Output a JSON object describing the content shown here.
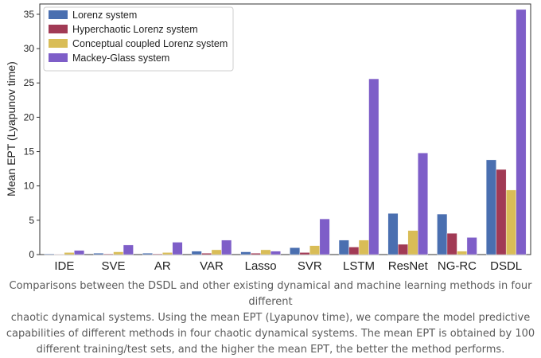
{
  "chart_data": {
    "type": "bar",
    "title": "",
    "xlabel": "",
    "ylabel": "Mean EPT (Lyapunov time)",
    "ylim": [
      0,
      36.5
    ],
    "yticks": [
      0,
      5,
      10,
      15,
      20,
      25,
      30,
      35
    ],
    "grid": false,
    "legend_position": "top-left",
    "categories": [
      "IDE",
      "SVE",
      "AR",
      "VAR",
      "Lasso",
      "SVR",
      "LSTM",
      "ResNet",
      "NG-RC",
      "DSDL"
    ],
    "series": [
      {
        "name": "Lorenz system",
        "color": "#4a6fb0",
        "values": [
          0.1,
          0.2,
          0.2,
          0.5,
          0.4,
          1.0,
          2.1,
          6.0,
          5.9,
          13.8
        ]
      },
      {
        "name": "Hyperchaotic Lorenz system",
        "color": "#a13a55",
        "values": [
          0.05,
          0.1,
          0.1,
          0.2,
          0.2,
          0.3,
          1.1,
          1.5,
          3.1,
          12.4
        ]
      },
      {
        "name": "Conceptual coupled Lorenz system",
        "color": "#d9bd57",
        "values": [
          0.3,
          0.4,
          0.3,
          0.7,
          0.7,
          1.3,
          2.1,
          3.5,
          0.5,
          9.4
        ]
      },
      {
        "name": "Mackey-Glass system",
        "color": "#7e5ec8",
        "values": [
          0.6,
          1.4,
          1.8,
          2.1,
          0.5,
          5.2,
          25.6,
          14.8,
          2.5,
          35.7
        ]
      }
    ]
  },
  "caption": {
    "lines": [
      "Comparisons between the DSDL and other existing dynamical and machine learning methods in four different",
      "chaotic dynamical systems. Using the mean EPT (Lyapunov time), we compare the model predictive",
      "capabilities of different methods in four chaotic dynamical systems. The mean EPT is obtained by 100",
      "different training/test sets, and the higher the mean EPT, the better the method performs."
    ]
  }
}
